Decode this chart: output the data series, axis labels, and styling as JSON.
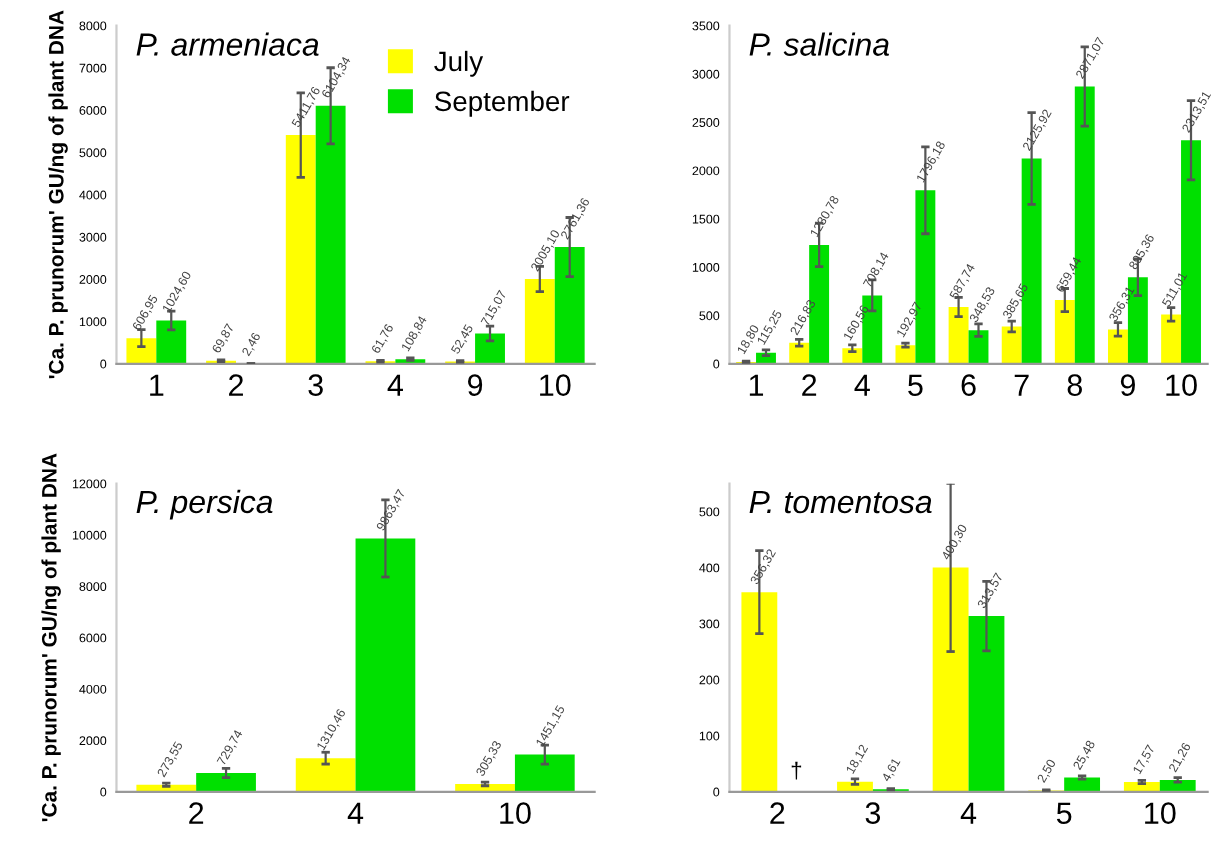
{
  "chart_data": [
    {
      "type": "bar",
      "title": "P. armeniaca",
      "ylabel": "'Ca. P. prunorum' GU/ng of plant DNA",
      "categories": [
        "1",
        "2",
        "3",
        "4",
        "9",
        "10"
      ],
      "ylim": [
        0,
        8000
      ],
      "yticks": [
        0,
        1000,
        2000,
        3000,
        4000,
        5000,
        6000,
        7000,
        8000
      ],
      "legend": "top right",
      "grid": false,
      "series": [
        {
          "name": "July",
          "color": "#ffff00",
          "values": [
            606.95,
            69.87,
            5411.76,
            61.76,
            52.45,
            2005.1
          ],
          "errors": [
            200,
            20,
            1000,
            20,
            20,
            300
          ],
          "value_labels": [
            "606,95",
            "69,87",
            "5411,76",
            "61,76",
            "52,45",
            "2005,10"
          ]
        },
        {
          "name": "September",
          "color": "#00e000",
          "values": [
            1024.6,
            2.46,
            6104.34,
            108.84,
            715.07,
            2761.36
          ],
          "errors": [
            220,
            null,
            900,
            30,
            175,
            700
          ],
          "value_labels": [
            "1024,60",
            "2,46",
            "6104,34",
            "108,84",
            "715,07",
            "2761,36"
          ]
        }
      ]
    },
    {
      "type": "bar",
      "title": "P. salicina",
      "categories": [
        "1",
        "2",
        "4",
        "5",
        "6",
        "7",
        "8",
        "9",
        "10"
      ],
      "ylim": [
        0,
        3500
      ],
      "yticks": [
        0,
        500,
        1000,
        1500,
        2000,
        2500,
        3000,
        3500
      ],
      "grid": false,
      "series": [
        {
          "color": "#ffff00",
          "values": [
            18.8,
            216.83,
            160.56,
            192.97,
            587.74,
            385.65,
            659.44,
            356.31,
            511.01
          ],
          "errors": [
            10,
            35,
            35,
            20,
            100,
            55,
            120,
            70,
            70
          ],
          "value_labels": [
            "18,80",
            "216,83",
            "160,56",
            "192,97",
            "587,74",
            "385,65",
            "659,44",
            "356,31",
            "511,01"
          ]
        },
        {
          "color": "#00e000",
          "values": [
            115.25,
            1230.78,
            708.14,
            1796.18,
            348.53,
            2125.92,
            2871.07,
            895.36,
            2313.51
          ],
          "errors": [
            30,
            225,
            160,
            450,
            65,
            475,
            410,
            190,
            410
          ],
          "value_labels": [
            "115,25",
            "1230,78",
            "708,14",
            "1796,18",
            "348,53",
            "2125,92",
            "2871,07",
            "895,36",
            "2313,51"
          ]
        }
      ]
    },
    {
      "type": "bar",
      "title": "P. persica",
      "ylabel": "'Ca. P. prunorum' GU/ng of plant DNA",
      "categories": [
        "2",
        "4",
        "10"
      ],
      "ylim": [
        0,
        12000
      ],
      "yticks": [
        0,
        2000,
        4000,
        6000,
        8000,
        10000,
        12000
      ],
      "grid": false,
      "series": [
        {
          "color": "#ffff00",
          "values": [
            273.55,
            1310.46,
            305.33
          ],
          "errors": [
            60,
            230,
            70
          ],
          "value_labels": [
            "273,55",
            "1310,46",
            "305,33"
          ]
        },
        {
          "color": "#00e000",
          "values": [
            729.74,
            9863.47,
            1451.15
          ],
          "errors": [
            180,
            1500,
            370
          ],
          "value_labels": [
            "729,74",
            "9863,47",
            "1451,15"
          ]
        }
      ]
    },
    {
      "type": "bar",
      "title": "P. tomentosa",
      "categories": [
        "2",
        "3",
        "4",
        "5",
        "10"
      ],
      "ylim": [
        0,
        550
      ],
      "yticks": [
        0,
        100,
        200,
        300,
        400,
        500
      ],
      "grid": false,
      "annotations": [
        {
          "text": "†",
          "x": "2",
          "y": 35
        }
      ],
      "series": [
        {
          "color": "#ffff00",
          "values": [
            356.32,
            18.12,
            400.3,
            2.5,
            17.57
          ],
          "errors": [
            74,
            5,
            150,
            1,
            3
          ],
          "value_labels": [
            "356,32",
            "18,12",
            "400,30",
            "2,50",
            "17,57"
          ]
        },
        {
          "color": "#00e000",
          "values": [
            null,
            4.61,
            313.57,
            25.48,
            21.26
          ],
          "errors": [
            null,
            1,
            62,
            3,
            4
          ],
          "value_labels": [
            null,
            "4,61",
            "313,57",
            "25,48",
            "21,26"
          ]
        }
      ]
    }
  ]
}
